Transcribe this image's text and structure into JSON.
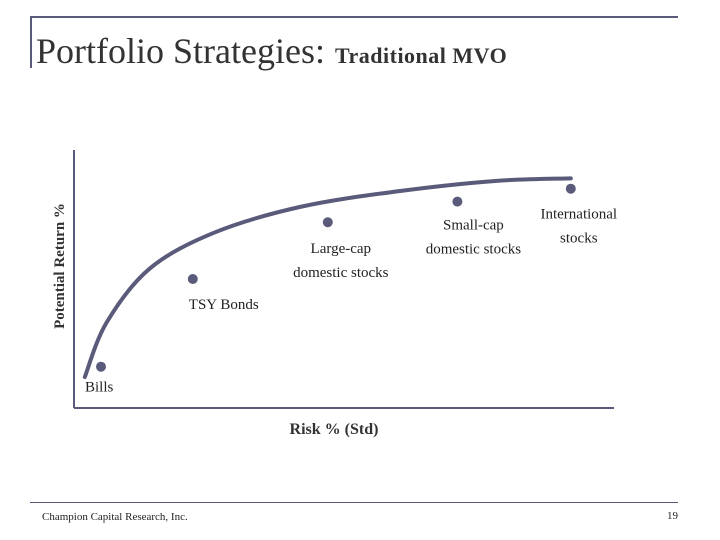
{
  "slide": {
    "title": "Portfolio Strategies:",
    "subtitle": "Traditional MVO",
    "footer_left": "Champion Capital Research, Inc.",
    "page_number": "19"
  },
  "chart_data": {
    "type": "scatter",
    "xlabel": "Risk % (Std)",
    "ylabel": "Potential Return %",
    "xlim": [
      0,
      100
    ],
    "ylim": [
      0,
      100
    ],
    "frontier": [
      {
        "x": 2,
        "y": 12
      },
      {
        "x": 6,
        "y": 33
      },
      {
        "x": 14,
        "y": 54
      },
      {
        "x": 26,
        "y": 68
      },
      {
        "x": 42,
        "y": 78
      },
      {
        "x": 60,
        "y": 84
      },
      {
        "x": 78,
        "y": 88
      },
      {
        "x": 92,
        "y": 89
      }
    ],
    "points": [
      {
        "label": "Bills",
        "x": 5,
        "y": 16,
        "label_pos": "below"
      },
      {
        "label": "TSY Bonds",
        "x": 22,
        "y": 50,
        "label_pos": "below-right"
      },
      {
        "label": "Large-cap domestic stocks",
        "lines": [
          "Large-cap",
          "domestic stocks"
        ],
        "x": 47,
        "y": 72,
        "label_pos": "below"
      },
      {
        "label": "Small-cap domestic stocks",
        "lines": [
          "Small-cap",
          "domestic stocks"
        ],
        "x": 71,
        "y": 80,
        "label_pos": "below"
      },
      {
        "label": "International stocks",
        "lines": [
          "International",
          "stocks"
        ],
        "x": 92,
        "y": 85,
        "label_pos": "below-right"
      }
    ],
    "colors": {
      "frontier": "#5a5a7a",
      "point": "#5a5a7a",
      "axis": "#5a5a7a"
    }
  }
}
